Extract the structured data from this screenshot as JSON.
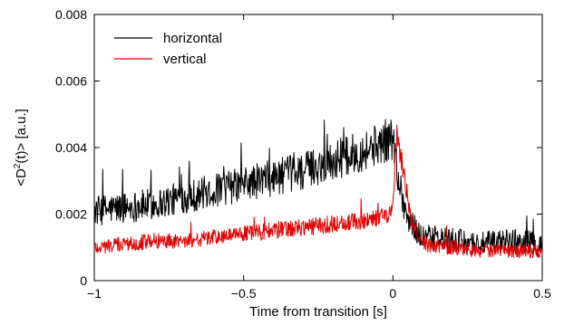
{
  "chart_data": {
    "type": "line",
    "title": "",
    "xlabel": "Time from transition [s]",
    "ylabel_parts": {
      "prefix": "<D",
      "superscript": "2",
      "suffix": "(t)> [a.u.]"
    },
    "xlim": [
      -1,
      0.5
    ],
    "ylim": [
      0,
      0.008
    ],
    "x_ticks": [
      -1,
      -0.5,
      0,
      0.5
    ],
    "x_tick_labels": [
      "−1",
      "−0.5",
      "0",
      "0.5"
    ],
    "y_ticks": [
      0,
      0.002,
      0.004,
      0.006,
      0.008
    ],
    "y_tick_labels": [
      "0",
      "0.002",
      "0.004",
      "0.006",
      "0.008"
    ],
    "grid": false,
    "legend_position": "top-left",
    "noisy_series_note": "dense noisy traces; values are estimated envelope means",
    "series": [
      {
        "name": "horizontal",
        "color": "#000000",
        "x": [
          -1.0,
          -0.9,
          -0.8,
          -0.7,
          -0.6,
          -0.5,
          -0.4,
          -0.3,
          -0.2,
          -0.1,
          -0.05,
          0.0,
          0.02,
          0.05,
          0.1,
          0.2,
          0.3,
          0.4,
          0.5
        ],
        "y": [
          0.0021,
          0.0022,
          0.0023,
          0.0025,
          0.0027,
          0.0029,
          0.0031,
          0.0033,
          0.0036,
          0.0039,
          0.0041,
          0.0043,
          0.003,
          0.0018,
          0.0013,
          0.0012,
          0.0011,
          0.0012,
          0.0011
        ],
        "noise": 0.00045
      },
      {
        "name": "vertical",
        "color": "#e00000",
        "x": [
          -1.0,
          -0.9,
          -0.8,
          -0.7,
          -0.6,
          -0.5,
          -0.4,
          -0.3,
          -0.2,
          -0.1,
          -0.05,
          0.0,
          0.01,
          0.02,
          0.04,
          0.06,
          0.1,
          0.2,
          0.3,
          0.4,
          0.5
        ],
        "y": [
          0.001,
          0.0011,
          0.0012,
          0.0012,
          0.0013,
          0.0014,
          0.0015,
          0.0016,
          0.0017,
          0.0018,
          0.0019,
          0.0021,
          0.0045,
          0.004,
          0.003,
          0.0018,
          0.0011,
          0.001,
          0.0009,
          0.0009,
          0.0009
        ],
        "noise": 0.00028
      }
    ]
  }
}
